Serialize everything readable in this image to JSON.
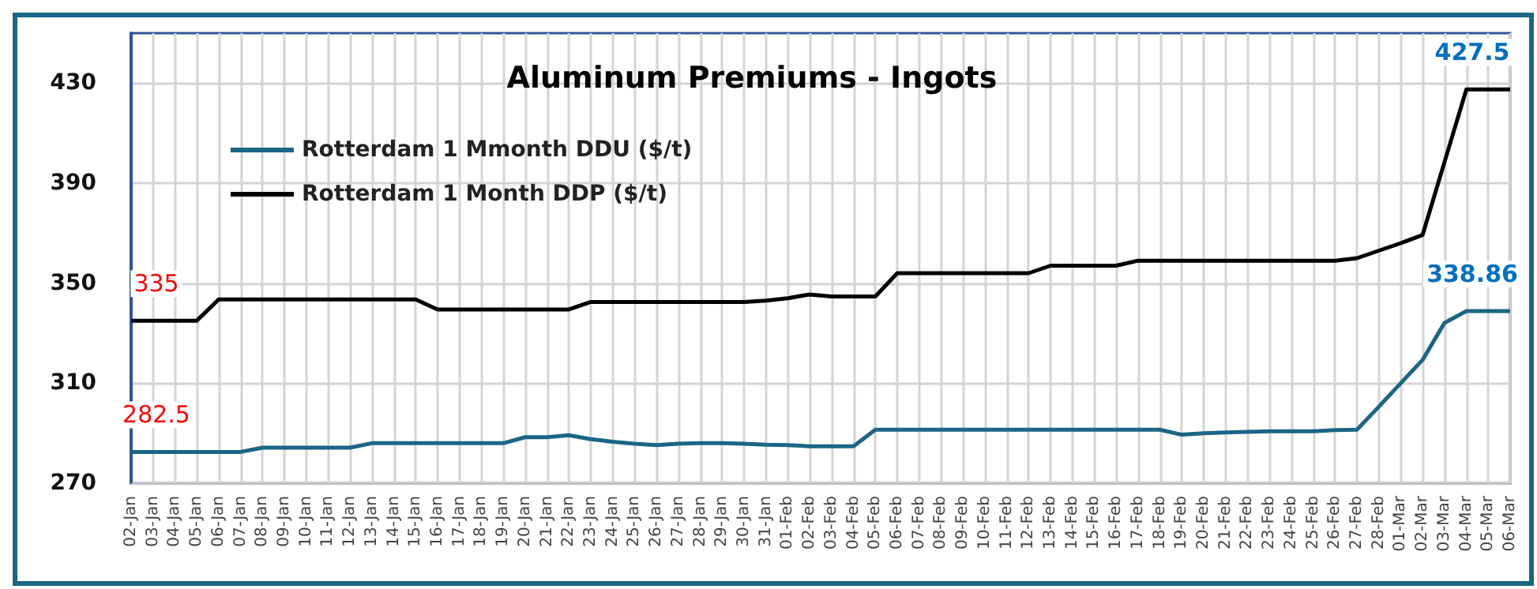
{
  "chart_data": {
    "type": "line",
    "title": "Aluminum Premiums - Ingots",
    "categories": [
      "02-Jan",
      "03-Jan",
      "04-Jan",
      "05-Jan",
      "06-Jan",
      "07-Jan",
      "08-Jan",
      "09-Jan",
      "10-Jan",
      "11-Jan",
      "12-Jan",
      "13-Jan",
      "14-Jan",
      "15-Jan",
      "16-Jan",
      "17-Jan",
      "18-Jan",
      "19-Jan",
      "20-Jan",
      "21-Jan",
      "22-Jan",
      "23-Jan",
      "24-Jan",
      "25-Jan",
      "26-Jan",
      "27-Jan",
      "28-Jan",
      "29-Jan",
      "30-Jan",
      "31-Jan",
      "01-Feb",
      "02-Feb",
      "03-Feb",
      "04-Feb",
      "05-Feb",
      "06-Feb",
      "07-Feb",
      "08-Feb",
      "09-Feb",
      "10-Feb",
      "11-Feb",
      "12-Feb",
      "13-Feb",
      "14-Feb",
      "15-Feb",
      "16-Feb",
      "17-Feb",
      "18-Feb",
      "19-Feb",
      "20-Feb",
      "21-Feb",
      "22-Feb",
      "23-Feb",
      "24-Feb",
      "25-Feb",
      "26-Feb",
      "27-Feb",
      "28-Feb",
      "01-Mar",
      "02-Mar",
      "03-Mar",
      "04-Mar",
      "05-Mar",
      "06-Mar"
    ],
    "series": [
      {
        "name": "Rotterdam 1 Mmonth DDU ($/t)",
        "color": "#1b6585",
        "values": [
          282.5,
          282.5,
          282.5,
          282.5,
          282.5,
          282.5,
          284.2,
          284.2,
          284.2,
          284.2,
          284.2,
          286,
          286,
          286,
          286,
          286,
          286,
          286,
          288.4,
          288.4,
          289.2,
          287.6,
          286.6,
          285.8,
          285.2,
          285.8,
          286,
          286,
          285.8,
          285.4,
          285.2,
          284.8,
          284.8,
          284.8,
          291.4,
          291.4,
          291.4,
          291.4,
          291.4,
          291.4,
          291.4,
          291.4,
          291.4,
          291.4,
          291.4,
          291.4,
          291.4,
          291.4,
          289.4,
          290,
          290.3,
          290.5,
          290.8,
          290.8,
          290.8,
          291.2,
          291.4,
          300.6,
          310,
          319.3,
          334.1,
          338.86,
          338.86,
          338.86
        ],
        "value_labels": [
          "282.5",
          null,
          null,
          null,
          null,
          null,
          null,
          null,
          null,
          null,
          null,
          null,
          null,
          null,
          null,
          null,
          null,
          null,
          null,
          null,
          null,
          null,
          null,
          null,
          null,
          null,
          null,
          null,
          null,
          null,
          null,
          null,
          null,
          null,
          null,
          null,
          null,
          null,
          null,
          null,
          null,
          null,
          null,
          null,
          null,
          null,
          null,
          null,
          null,
          null,
          null,
          null,
          null,
          null,
          null,
          null,
          null,
          null,
          null,
          null,
          null,
          null,
          null,
          "338.86"
        ]
      },
      {
        "name": "Rotterdam 1 Month DDP ($/t)",
        "color": "#000000",
        "values": [
          335,
          335,
          335,
          335,
          343.5,
          343.5,
          343.5,
          343.5,
          343.5,
          343.5,
          343.5,
          343.5,
          343.5,
          343.5,
          339.5,
          339.5,
          339.5,
          339.5,
          339.5,
          339.5,
          339.5,
          342.5,
          342.5,
          342.5,
          342.5,
          342.5,
          342.5,
          342.5,
          342.5,
          343,
          344,
          345.5,
          344.7,
          344.7,
          344.7,
          354,
          354,
          354,
          354,
          354,
          354,
          354,
          357,
          357,
          357,
          357,
          359,
          359,
          359,
          359,
          359,
          359,
          359,
          359,
          359,
          359,
          360,
          363,
          366,
          369.3,
          398.4,
          427.5,
          427.5,
          427.5
        ],
        "value_labels": [
          "335",
          null,
          null,
          null,
          null,
          null,
          null,
          null,
          null,
          null,
          null,
          null,
          null,
          null,
          null,
          null,
          null,
          null,
          null,
          null,
          null,
          null,
          null,
          null,
          null,
          null,
          null,
          null,
          null,
          null,
          null,
          null,
          null,
          null,
          null,
          null,
          null,
          null,
          null,
          null,
          null,
          null,
          null,
          null,
          null,
          null,
          null,
          null,
          null,
          null,
          null,
          null,
          null,
          null,
          null,
          null,
          null,
          null,
          null,
          null,
          null,
          null,
          null,
          "427.5"
        ]
      }
    ],
    "ylim": [
      270,
      450
    ],
    "yticks": [
      270,
      310,
      350,
      390,
      430
    ],
    "grid": true,
    "legend": "top left",
    "marker": "none",
    "line_style": "solid"
  }
}
